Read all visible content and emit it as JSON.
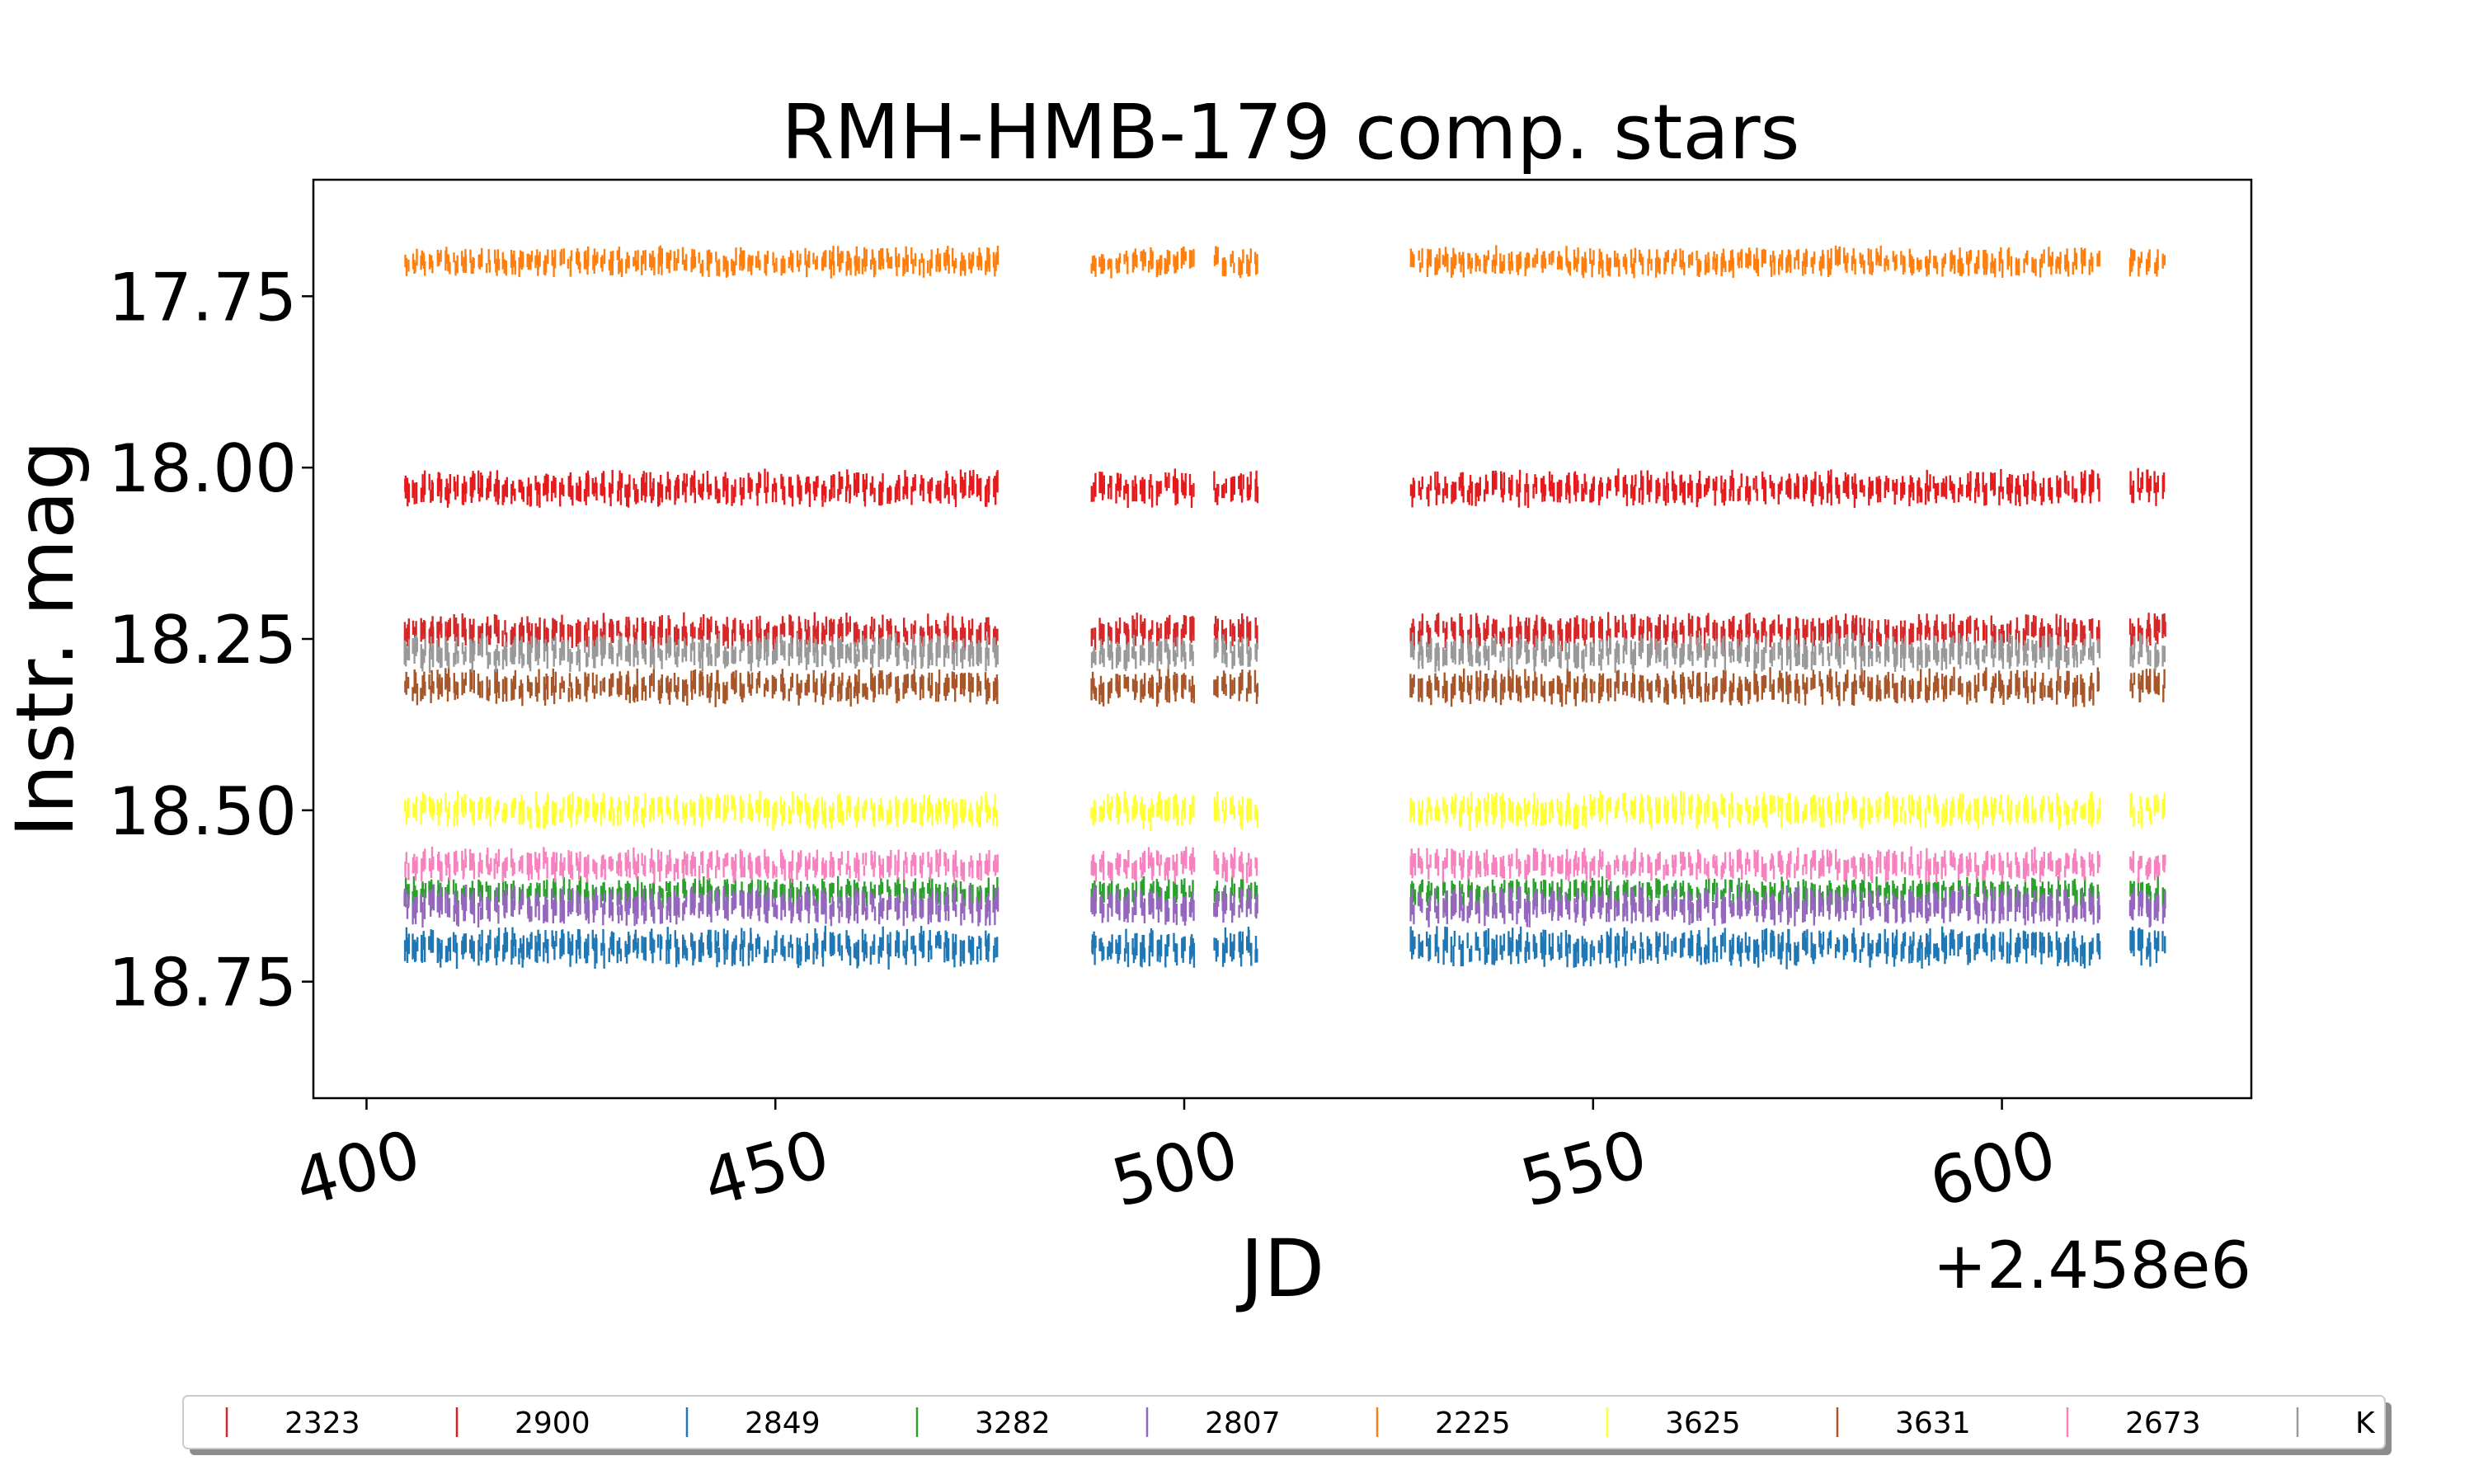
{
  "chart_data": {
    "type": "scatter",
    "title": "RMH-HMB-179 comp. stars",
    "xlabel": "JD",
    "ylabel": "Instr. mag",
    "x_offset_label": "+2.458e6",
    "xlim": [
      393.5,
      630.5
    ],
    "ylim": [
      18.92,
      17.58
    ],
    "y_inverted": true,
    "x_ticks": [
      400,
      450,
      500,
      550,
      600
    ],
    "x_tick_labels": [
      "400",
      "450",
      "500",
      "550",
      "600"
    ],
    "y_ticks": [
      17.75,
      18.0,
      18.25,
      18.5,
      18.75
    ],
    "y_tick_labels": [
      "17.75",
      "18.00",
      "18.25",
      "18.50",
      "18.75"
    ],
    "observing_windows": [
      [
        404.5,
        477.5
      ],
      [
        488.5,
        501.5
      ],
      [
        503.5,
        509.0
      ],
      [
        527.5,
        612.0
      ],
      [
        615.5,
        620.0
      ]
    ],
    "nightly_cadence_days": 1,
    "grid": false,
    "legend_position": "bottom",
    "series": [
      {
        "name": "2323",
        "color": "#d62728",
        "mean_mag": 18.24,
        "scatter_mag": 0.012
      },
      {
        "name": "2900",
        "color": "#e41a1c",
        "mean_mag": 18.03,
        "scatter_mag": 0.012
      },
      {
        "name": "2849",
        "color": "#1f77b4",
        "mean_mag": 18.7,
        "scatter_mag": 0.013
      },
      {
        "name": "3282",
        "color": "#2ca02c",
        "mean_mag": 18.62,
        "scatter_mag": 0.01
      },
      {
        "name": "2807",
        "color": "#9467bd",
        "mean_mag": 18.64,
        "scatter_mag": 0.013
      },
      {
        "name": "2225",
        "color": "#ff7f0e",
        "mean_mag": 17.7,
        "scatter_mag": 0.01
      },
      {
        "name": "3625",
        "color": "#ffff33",
        "mean_mag": 18.5,
        "scatter_mag": 0.012
      },
      {
        "name": "3631",
        "color": "#a65628",
        "mean_mag": 18.32,
        "scatter_mag": 0.012
      },
      {
        "name": "2673",
        "color": "#f781bf",
        "mean_mag": 18.58,
        "scatter_mag": 0.011
      },
      {
        "name": "K",
        "color": "#999999",
        "mean_mag": 18.27,
        "scatter_mag": 0.012
      }
    ]
  }
}
